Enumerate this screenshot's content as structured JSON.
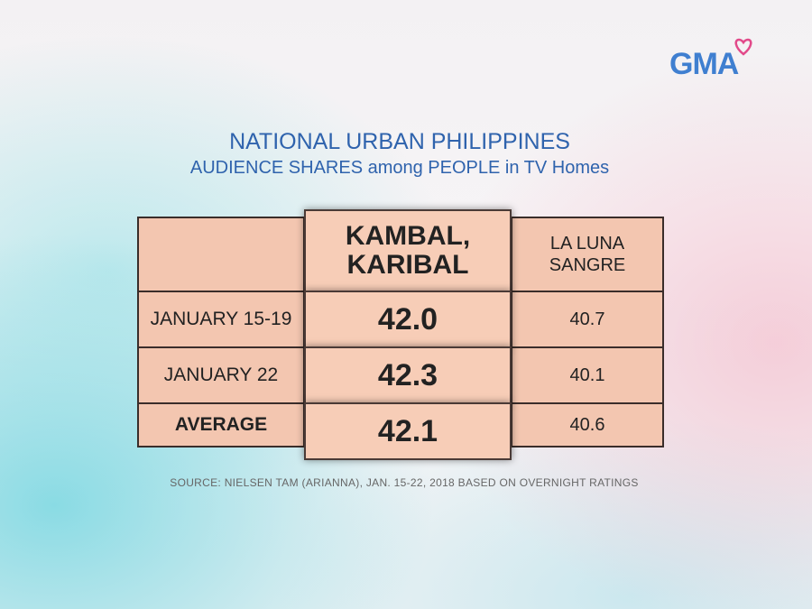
{
  "logo": "GMA",
  "title": "NATIONAL URBAN PHILIPPINES",
  "subtitle": "AUDIENCE SHARES among PEOPLE in TV Homes",
  "table": {
    "columns": [
      {
        "lines": [
          "KAMBAL,",
          "KARIBAL"
        ]
      },
      {
        "lines": [
          "LA LUNA",
          "SANGRE"
        ]
      }
    ],
    "rows": [
      {
        "label": "JANUARY 15-19",
        "values": [
          "42.0",
          "40.7"
        ]
      },
      {
        "label": "JANUARY 22",
        "values": [
          "42.3",
          "40.1"
        ]
      },
      {
        "label": "AVERAGE",
        "values": [
          "42.1",
          "40.6"
        ]
      }
    ]
  },
  "source": "SOURCE: NIELSEN TAM (ARIANNA), JAN. 15-22, 2018  BASED ON OVERNIGHT RATINGS"
}
